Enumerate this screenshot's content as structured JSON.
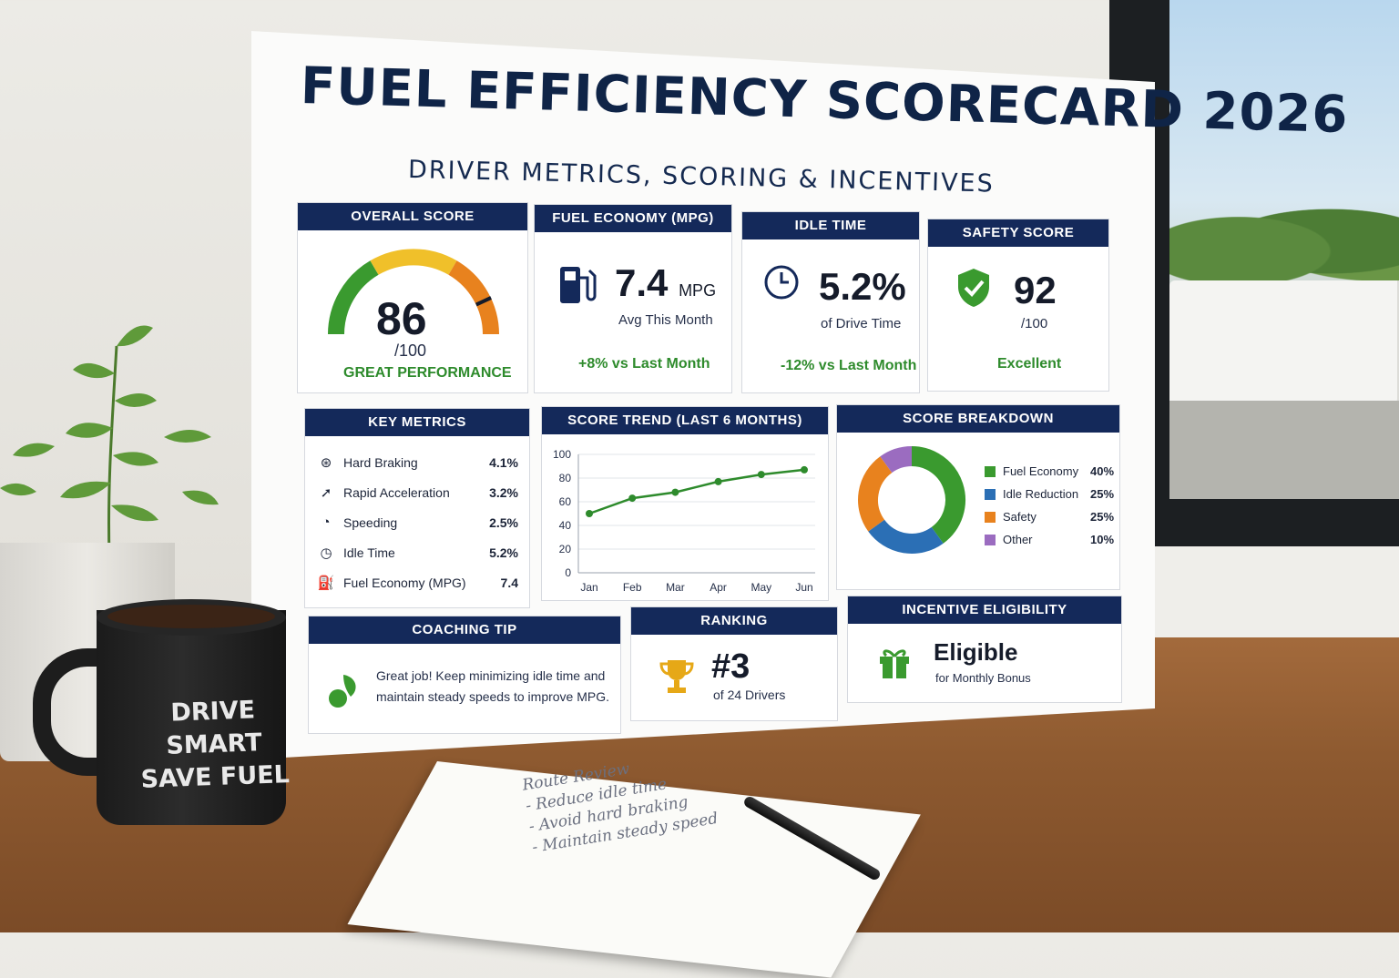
{
  "poster": {
    "title": "FUEL EFFICIENCY SCORECARD 2026",
    "subtitle": "DRIVER METRICS, SCORING & INCENTIVES"
  },
  "overall": {
    "header": "OVERALL SCORE",
    "score": "86",
    "denominator": "/100",
    "label": "GREAT PERFORMANCE",
    "gauge_fraction": 0.86
  },
  "fuel": {
    "header": "FUEL ECONOMY (MPG)",
    "value": "7.4",
    "unit": "MPG",
    "sub": "Avg This Month",
    "delta": "+8% vs Last Month"
  },
  "idle": {
    "header": "IDLE TIME",
    "value": "5.2%",
    "sub": "of Drive Time",
    "delta": "-12% vs Last Month"
  },
  "safety": {
    "header": "SAFETY SCORE",
    "value": "92",
    "sub": "/100",
    "delta": "Excellent"
  },
  "key_metrics": {
    "header": "KEY METRICS",
    "rows": [
      {
        "icon": "brake-icon",
        "label": "Hard Braking",
        "value": "4.1%"
      },
      {
        "icon": "acceleration-icon",
        "label": "Rapid Acceleration",
        "value": "3.2%"
      },
      {
        "icon": "speedometer-icon",
        "label": "Speeding",
        "value": "2.5%"
      },
      {
        "icon": "clock-icon",
        "label": "Idle Time",
        "value": "5.2%"
      },
      {
        "icon": "fuel-icon",
        "label": "Fuel Economy (MPG)",
        "value": "7.4"
      }
    ]
  },
  "trend": {
    "header": "SCORE TREND (LAST 6 MONTHS)"
  },
  "breakdown": {
    "header": "SCORE BREAKDOWN"
  },
  "coaching": {
    "header": "COACHING TIP",
    "text": "Great job! Keep minimizing idle time and maintain steady speeds to improve MPG."
  },
  "ranking": {
    "header": "RANKING",
    "value": "#3",
    "sub": "of 24 Drivers"
  },
  "incentive": {
    "header": "INCENTIVE ELIGIBILITY",
    "value": "Eligible",
    "sub": "for Monthly Bonus"
  },
  "mug": {
    "line1": "DRIVE SMART",
    "line2": "SAVE FUEL"
  },
  "notebook": {
    "title": "Route Review",
    "items": [
      "- Reduce idle time",
      "- Avoid hard braking",
      "- Maintain steady speed"
    ]
  },
  "colors": {
    "navy": "#14295a",
    "green": "#3a9a2f",
    "blue": "#2b6fb5",
    "orange": "#e8821e",
    "purple": "#9b6cc0",
    "yellow": "#f0c02a"
  },
  "chart_data": [
    {
      "type": "line",
      "title": "SCORE TREND (LAST 6 MONTHS)",
      "categories": [
        "Jan",
        "Feb",
        "Mar",
        "Apr",
        "May",
        "Jun"
      ],
      "values": [
        50,
        63,
        68,
        77,
        83,
        87
      ],
      "ylim": [
        0,
        100
      ],
      "yticks": [
        "0",
        "20",
        "40",
        "60",
        "80",
        "100"
      ],
      "grid": true
    },
    {
      "type": "pie",
      "title": "SCORE BREAKDOWN",
      "labels": [
        "Fuel Economy",
        "Idle Reduction",
        "Safety",
        "Other"
      ],
      "values": [
        40,
        25,
        25,
        10
      ],
      "value_labels": [
        "40%",
        "25%",
        "25%",
        "10%"
      ],
      "colors": [
        "#3a9a2f",
        "#2b6fb5",
        "#e8821e",
        "#9b6cc0"
      ],
      "legend": "right"
    }
  ]
}
